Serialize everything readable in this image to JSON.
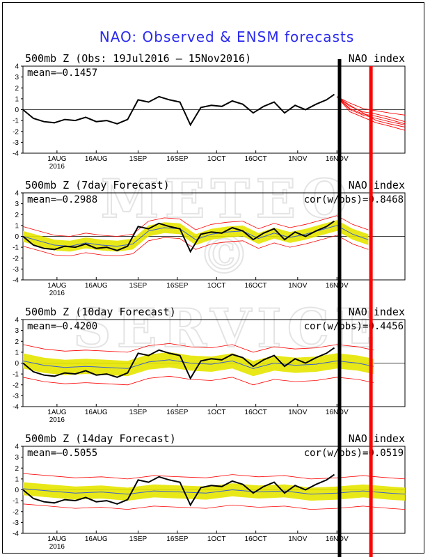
{
  "figure": {
    "title": "NAO: Observed & ENSM forecasts",
    "watermark": [
      "METEO",
      "©",
      "SERVICE"
    ],
    "colors": {
      "title": "#2a2af0",
      "observed": "#000000",
      "ensemble_spread": "#e6e600",
      "ensemble_members": "#ff0000",
      "ensemble_mean": "#3a5fcd",
      "marker_black": "#000000",
      "marker_red": "#ff0000"
    }
  },
  "chart_data": [
    {
      "type": "line",
      "title": "500mb Z (Obs: 19Jul2016 – 15Nov2016)",
      "index_label": "NAO index",
      "mean_label": "mean=–0.1457",
      "cor_label": "",
      "ylim": [
        -4,
        4
      ],
      "yticks": [
        4,
        3,
        2,
        1,
        0,
        -1,
        -2,
        -3,
        -4
      ],
      "x_ticks": [
        "1AUG",
        "16AUG",
        "1SEP",
        "16SEP",
        "1OCT",
        "16OCT",
        "1NOV",
        "16NOV"
      ],
      "x_ticks_day": [
        13,
        28,
        44,
        59,
        74,
        89,
        105,
        120
      ],
      "x_year_label": "2016",
      "xlim_days": [
        0,
        146
      ],
      "observed": {
        "x": [
          0,
          4,
          8,
          12,
          16,
          20,
          24,
          28,
          32,
          36,
          40,
          44,
          48,
          52,
          56,
          60,
          64,
          68,
          72,
          76,
          80,
          84,
          88,
          92,
          96,
          100,
          104,
          108,
          112,
          116,
          119
        ],
        "y": [
          0,
          -0.8,
          -1.1,
          -1.2,
          -0.9,
          -1.0,
          -0.7,
          -1.1,
          -1.0,
          -1.3,
          -0.9,
          0.9,
          0.7,
          1.2,
          0.9,
          0.7,
          -1.4,
          0.2,
          0.4,
          0.3,
          0.8,
          0.5,
          -0.3,
          0.3,
          0.7,
          -0.3,
          0.4,
          0.0,
          0.5,
          0.9,
          1.4
        ]
      },
      "forecast_members": {
        "x": [
          120,
          125,
          130,
          135,
          140,
          146
        ],
        "members": [
          [
            1.2,
            0.3,
            -0.2,
            -0.4,
            -0.7,
            -1.1
          ],
          [
            1.2,
            0.0,
            -0.5,
            -0.8,
            -1.1,
            -1.4
          ],
          [
            1.2,
            0.6,
            0.1,
            -0.1,
            -0.3,
            -0.5
          ],
          [
            1.2,
            -0.2,
            -0.7,
            -1.2,
            -1.5,
            -1.9
          ],
          [
            1.2,
            0.1,
            -0.4,
            -0.6,
            -0.9,
            -1.3
          ],
          [
            1.2,
            0.4,
            -0.3,
            -1.0,
            -1.3,
            -1.6
          ]
        ]
      }
    },
    {
      "type": "line",
      "title": "500mb Z (7day Forecast)",
      "index_label": "NAO index",
      "mean_label": "mean=–0.2988",
      "cor_label": "cor(w/obs)=0.8468",
      "ylim": [
        -4,
        4
      ],
      "yticks": [
        4,
        3,
        2,
        1,
        0,
        -1,
        -2,
        -3,
        -4
      ],
      "x_ticks": [
        "1AUG",
        "16AUG",
        "1SEP",
        "16SEP",
        "1OCT",
        "16OCT",
        "1NOV",
        "16NOV"
      ],
      "x_ticks_day": [
        13,
        28,
        44,
        59,
        74,
        89,
        105,
        120
      ],
      "x_year_label": "2016",
      "xlim_days": [
        0,
        146
      ],
      "observed": {
        "x": [
          0,
          4,
          8,
          12,
          16,
          20,
          24,
          28,
          32,
          36,
          40,
          44,
          48,
          52,
          56,
          60,
          64,
          68,
          72,
          76,
          80,
          84,
          88,
          92,
          96,
          100,
          104,
          108,
          112,
          116,
          119
        ],
        "y": [
          0,
          -0.8,
          -1.1,
          -1.2,
          -0.9,
          -1.0,
          -0.7,
          -1.1,
          -1.0,
          -1.3,
          -0.9,
          0.9,
          0.7,
          1.2,
          0.9,
          0.7,
          -1.4,
          0.2,
          0.4,
          0.3,
          0.8,
          0.5,
          -0.3,
          0.3,
          0.7,
          -0.3,
          0.4,
          0.0,
          0.5,
          0.9,
          1.4
        ]
      },
      "ensemble_mean": {
        "x": [
          0,
          6,
          12,
          18,
          24,
          30,
          36,
          42,
          48,
          54,
          60,
          66,
          72,
          78,
          84,
          90,
          96,
          102,
          108,
          114,
          120,
          126,
          132
        ],
        "y": [
          0,
          -0.4,
          -0.8,
          -0.9,
          -0.6,
          -0.8,
          -0.9,
          -0.7,
          0.5,
          0.8,
          0.7,
          -0.3,
          0.2,
          0.4,
          0.5,
          -0.2,
          0.3,
          -0.1,
          0.2,
          0.6,
          1.0,
          0.2,
          -0.3
        ]
      },
      "spread_halfwidth": 0.5,
      "member_envelope_halfwidth": 0.9
    },
    {
      "type": "line",
      "title": "500mb Z (10day Forecast)",
      "index_label": "NAO index",
      "mean_label": "mean=–0.4200",
      "cor_label": "cor(w/obs)=0.4456",
      "ylim": [
        -4,
        4
      ],
      "yticks": [
        4,
        3,
        2,
        1,
        0,
        -1,
        -2,
        -3,
        -4
      ],
      "x_ticks": [
        "1AUG",
        "16AUG",
        "1SEP",
        "16SEP",
        "1OCT",
        "16OCT",
        "1NOV",
        "16NOV"
      ],
      "x_ticks_day": [
        13,
        28,
        44,
        59,
        74,
        89,
        105,
        120
      ],
      "x_year_label": "2016",
      "xlim_days": [
        0,
        146
      ],
      "observed": {
        "x": [
          0,
          4,
          8,
          12,
          16,
          20,
          24,
          28,
          32,
          36,
          40,
          44,
          48,
          52,
          56,
          60,
          64,
          68,
          72,
          76,
          80,
          84,
          88,
          92,
          96,
          100,
          104,
          108,
          112,
          116,
          119
        ],
        "y": [
          0,
          -0.8,
          -1.1,
          -1.2,
          -0.9,
          -1.0,
          -0.7,
          -1.1,
          -1.0,
          -1.3,
          -0.9,
          0.9,
          0.7,
          1.2,
          0.9,
          0.7,
          -1.4,
          0.2,
          0.4,
          0.3,
          0.8,
          0.5,
          -0.3,
          0.3,
          0.7,
          -0.3,
          0.4,
          0.0,
          0.5,
          0.9,
          1.4
        ]
      },
      "ensemble_mean": {
        "x": [
          0,
          8,
          16,
          24,
          32,
          40,
          48,
          56,
          64,
          72,
          80,
          88,
          96,
          104,
          112,
          120,
          128,
          134
        ],
        "y": [
          0.2,
          -0.2,
          -0.4,
          -0.3,
          -0.4,
          -0.5,
          0.1,
          0.3,
          0.0,
          -0.1,
          0.2,
          -0.5,
          0.0,
          -0.2,
          -0.1,
          0.2,
          0.0,
          -0.3
        ]
      },
      "spread_halfwidth": 0.7,
      "member_envelope_halfwidth": 1.5
    },
    {
      "type": "line",
      "title": "500mb Z (14day Forecast)",
      "index_label": "NAO index",
      "mean_label": "mean=–0.5055",
      "cor_label": "cor(w/obs)=0.0519",
      "ylim": [
        -4,
        4
      ],
      "yticks": [
        4,
        3,
        2,
        1,
        0,
        -1,
        -2,
        -3,
        -4
      ],
      "x_ticks": [
        "1AUG",
        "16AUG",
        "1SEP",
        "16SEP",
        "1OCT",
        "16OCT",
        "1NOV",
        "16NOV"
      ],
      "x_ticks_day": [
        13,
        28,
        44,
        59,
        74,
        89,
        105,
        120
      ],
      "x_year_label": "2016",
      "xlim_days": [
        0,
        146
      ],
      "observed": {
        "x": [
          0,
          4,
          8,
          12,
          16,
          20,
          24,
          28,
          32,
          36,
          40,
          44,
          48,
          52,
          56,
          60,
          64,
          68,
          72,
          76,
          80,
          84,
          88,
          92,
          96,
          100,
          104,
          108,
          112,
          116,
          119
        ],
        "y": [
          0,
          -0.8,
          -1.1,
          -1.2,
          -0.9,
          -1.0,
          -0.7,
          -1.1,
          -1.0,
          -1.3,
          -0.9,
          0.9,
          0.7,
          1.2,
          0.9,
          0.7,
          -1.4,
          0.2,
          0.4,
          0.3,
          0.8,
          0.5,
          -0.3,
          0.3,
          0.7,
          -0.3,
          0.4,
          0.0,
          0.5,
          0.9,
          1.4
        ]
      },
      "ensemble_mean": {
        "x": [
          0,
          10,
          20,
          30,
          40,
          50,
          60,
          70,
          80,
          90,
          100,
          110,
          120,
          130,
          140,
          146
        ],
        "y": [
          0.1,
          -0.1,
          -0.3,
          -0.2,
          -0.4,
          -0.1,
          -0.2,
          -0.3,
          0.0,
          -0.2,
          -0.1,
          -0.4,
          -0.3,
          -0.1,
          -0.3,
          -0.4
        ]
      },
      "spread_halfwidth": 0.6,
      "member_envelope_halfwidth": 1.4
    }
  ],
  "markers": {
    "black_line_day": 121,
    "red_line_day": 133
  }
}
